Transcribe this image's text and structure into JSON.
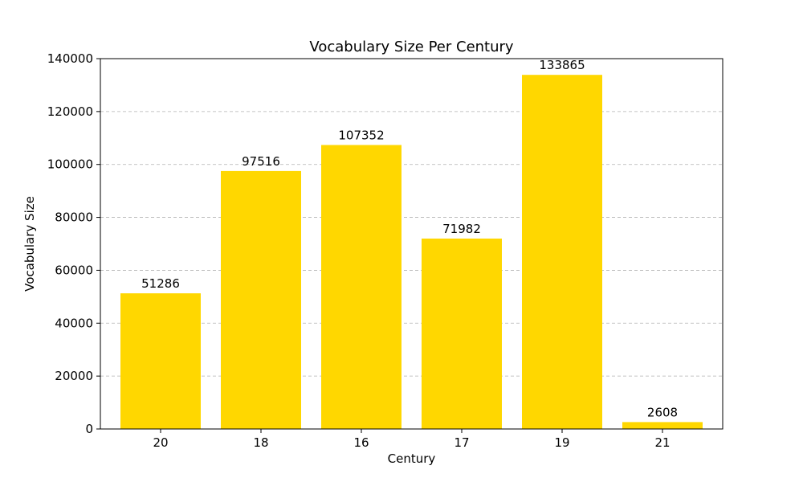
{
  "chart_data": {
    "type": "bar",
    "title": "Vocabulary Size Per Century",
    "xlabel": "Century",
    "ylabel": "Vocabulary Size",
    "categories": [
      "20",
      "18",
      "16",
      "17",
      "19",
      "21"
    ],
    "values": [
      51286,
      97516,
      107352,
      71982,
      133865,
      2608
    ],
    "ylim": [
      0,
      140000
    ],
    "yticks": [
      0,
      20000,
      40000,
      60000,
      80000,
      100000,
      120000,
      140000
    ],
    "grid": "horizontal-dashed",
    "bar_color": "#FFD700",
    "legend": "none"
  }
}
